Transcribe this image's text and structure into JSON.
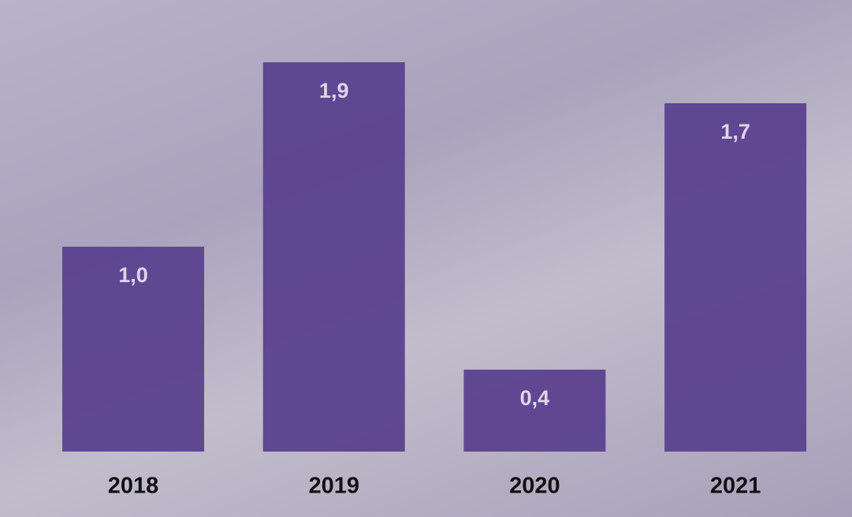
{
  "chart_data": {
    "type": "bar",
    "categories": [
      "2018",
      "2019",
      "2020",
      "2021"
    ],
    "values": [
      1.0,
      1.9,
      0.4,
      1.7
    ],
    "value_labels": [
      "1,0",
      "1,9",
      "0,4",
      "1,7"
    ],
    "color": "#5c418f"
  }
}
